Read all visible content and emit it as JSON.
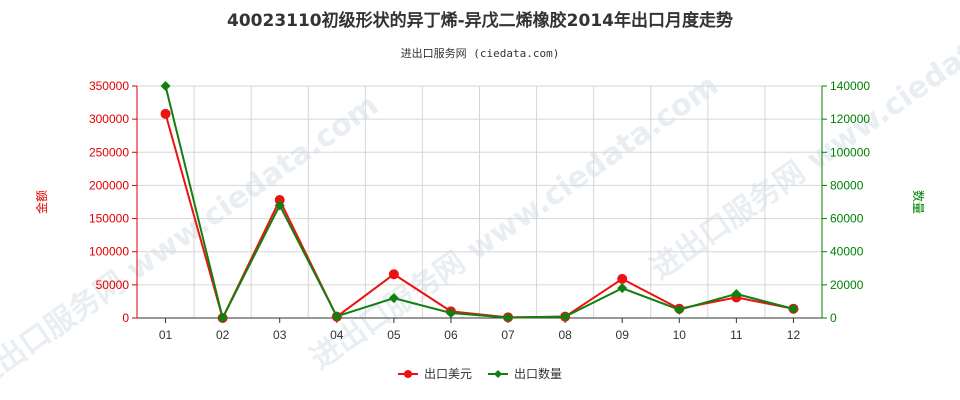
{
  "chart_data": {
    "type": "line",
    "title": "40023110初级形状的异丁烯-异戊二烯橡胶2014年出口月度走势",
    "subtitle": "进出口服务网 (ciedata.com)",
    "watermark": "进出口服务网 www.ciedata.com",
    "categories": [
      "01",
      "02",
      "03",
      "04",
      "05",
      "06",
      "07",
      "08",
      "09",
      "10",
      "11",
      "12"
    ],
    "y_left": {
      "label": "金额",
      "lim": [
        0,
        350000
      ],
      "ticks": [
        "0",
        "50000",
        "100000",
        "150000",
        "200000",
        "250000",
        "300000",
        "350000"
      ],
      "color": "#e00000"
    },
    "y_right": {
      "label": "数量",
      "lim": [
        0,
        140000
      ],
      "ticks": [
        "0",
        "20000",
        "40000",
        "60000",
        "80000",
        "100000",
        "120000",
        "140000"
      ],
      "color": "#008000"
    },
    "series": [
      {
        "name": "出口美元",
        "axis": "left",
        "color": "#ee1111",
        "values": [
          308000,
          0,
          178000,
          2000,
          66000,
          10000,
          1000,
          2000,
          59000,
          14000,
          31000,
          14000
        ]
      },
      {
        "name": "出口数量",
        "axis": "right",
        "color": "#108010",
        "values": [
          140000,
          0,
          68000,
          1000,
          12000,
          3000,
          200,
          800,
          18000,
          5000,
          14500,
          5500
        ]
      }
    ],
    "grid": true,
    "legend_position": "bottom-center"
  }
}
